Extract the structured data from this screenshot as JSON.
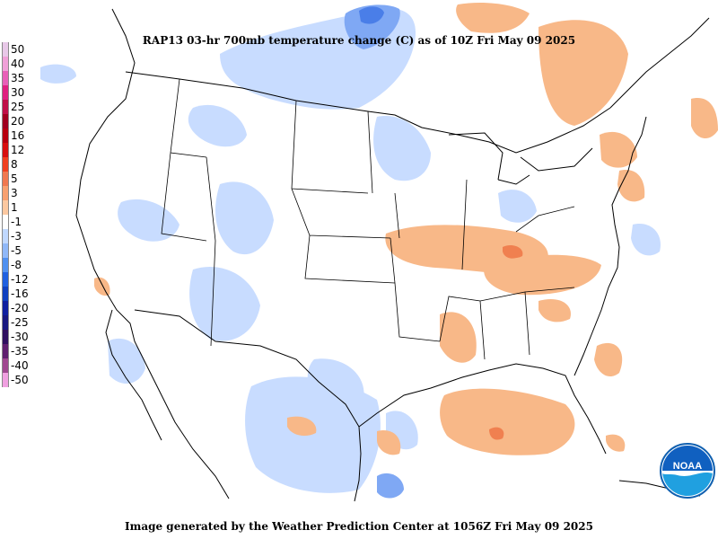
{
  "header": {
    "title": "RAP13 03-hr 700mb temperature change (C) as of 10Z Fri May 09 2025"
  },
  "footer": {
    "text": "Image generated by the Weather Prediction Center at 1056Z Fri May 09 2025"
  },
  "logo": {
    "text": "NOAA"
  },
  "legend": {
    "items": [
      {
        "label": "50",
        "color": "#e8c8e8"
      },
      {
        "label": "40",
        "color": "#f0a0d8"
      },
      {
        "label": "35",
        "color": "#e860b8"
      },
      {
        "label": "30",
        "color": "#e02080"
      },
      {
        "label": "25",
        "color": "#c01048"
      },
      {
        "label": "20",
        "color": "#a00020"
      },
      {
        "label": "16",
        "color": "#b80010"
      },
      {
        "label": "12",
        "color": "#d81010"
      },
      {
        "label": "8",
        "color": "#f04020"
      },
      {
        "label": "5",
        "color": "#f07850"
      },
      {
        "label": "3",
        "color": "#f8a070"
      },
      {
        "label": "1",
        "color": "#fcc8a0"
      },
      {
        "label": "-1",
        "color": "#ffffff"
      },
      {
        "label": "-3",
        "color": "#c0d8ff"
      },
      {
        "label": "-5",
        "color": "#90b8f8"
      },
      {
        "label": "-8",
        "color": "#5090f0"
      },
      {
        "label": "-12",
        "color": "#2060e0"
      },
      {
        "label": "-16",
        "color": "#1040c0"
      },
      {
        "label": "-20",
        "color": "#1020a0"
      },
      {
        "label": "-25",
        "color": "#181880"
      },
      {
        "label": "-30",
        "color": "#301060"
      },
      {
        "label": "-35",
        "color": "#602070"
      },
      {
        "label": "-40",
        "color": "#a04890"
      },
      {
        "label": "-50",
        "color": "#f0a0e0"
      }
    ]
  },
  "colors": {
    "warm": "#f8b888",
    "warm_strong": "#f08050",
    "cool": "#c8dcff",
    "cool_strong": "#7fa8f4",
    "border": "#000000"
  }
}
